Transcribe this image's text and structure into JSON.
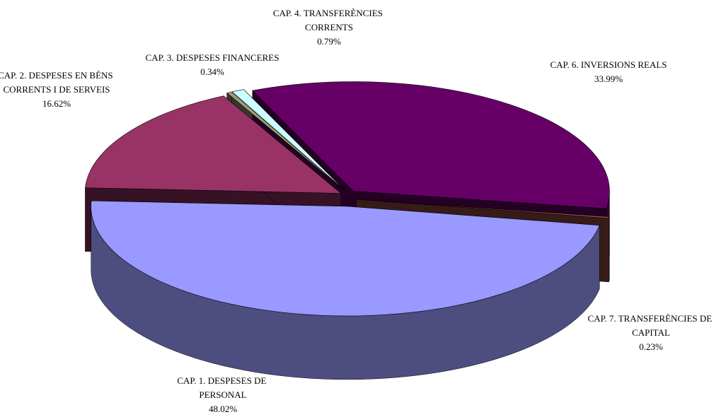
{
  "chart_data": {
    "type": "pie",
    "style": "3d-exploded",
    "categories": [
      "CAP. 1. DESPESES DE PERSONAL",
      "CAP. 2. DESPESES EN BÉNS CORRENTS I DE SERVEIS",
      "CAP. 3. DESPESES FINANCERES",
      "CAP. 4. TRANSFERÈNCIES CORRENTS",
      "CAP. 6. INVERSIONS REALS",
      "CAP. 7. TRANSFERÈNCIES DE CAPITAL"
    ],
    "values": [
      48.02,
      16.62,
      0.34,
      0.79,
      33.99,
      0.23
    ],
    "value_labels": [
      "48.02%",
      "16.62%",
      "0.34%",
      "0.79%",
      "33.99%",
      "0.23%"
    ],
    "colors": [
      "#9999ff",
      "#993366",
      "#999977",
      "#ccffff",
      "#660066",
      "#994d44"
    ]
  }
}
